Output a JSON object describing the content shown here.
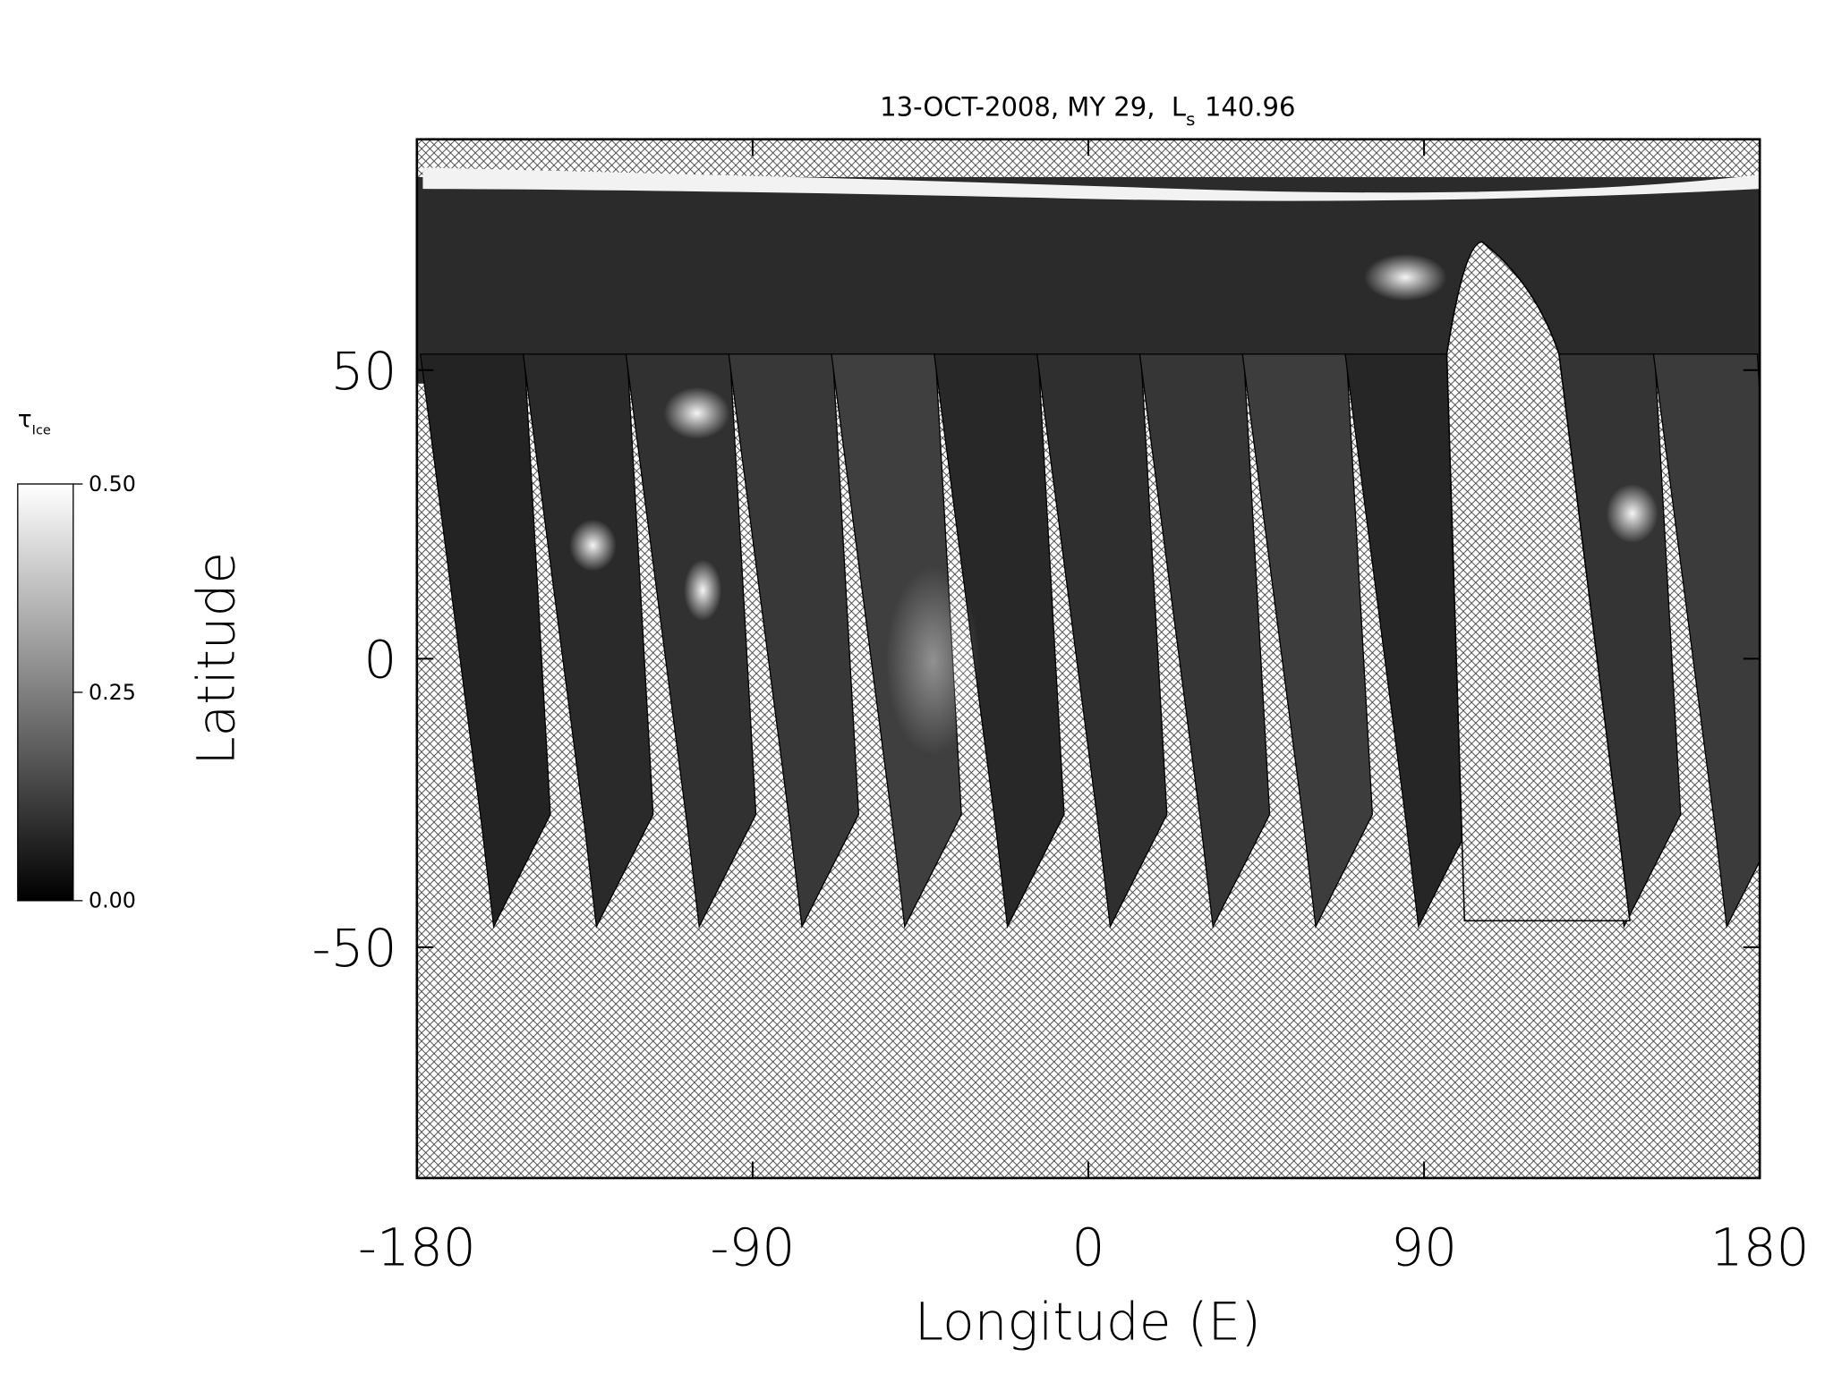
{
  "chart_data": {
    "type": "map",
    "title": {
      "prefix": "13-OCT-2008, MY 29,",
      "ls_symbol": "L",
      "ls_subscript": "s",
      "ls_value": "140.96"
    },
    "x_label": "Longitude (E)",
    "y_label": "Latitude",
    "xlim": [
      -180,
      180
    ],
    "xticks": [
      -180,
      -90,
      0,
      90,
      180
    ],
    "ylim": [
      -90,
      90
    ],
    "yticks": [
      -50,
      0,
      50
    ],
    "colorbar": {
      "symbol": "τ",
      "subscript": "Ice",
      "range": [
        0,
        0.5
      ],
      "ticks": [
        {
          "value": 0,
          "label": "0.00"
        },
        {
          "value": 0.25,
          "label": "0.25"
        },
        {
          "value": 0.5,
          "label": "0.50"
        }
      ]
    }
  }
}
